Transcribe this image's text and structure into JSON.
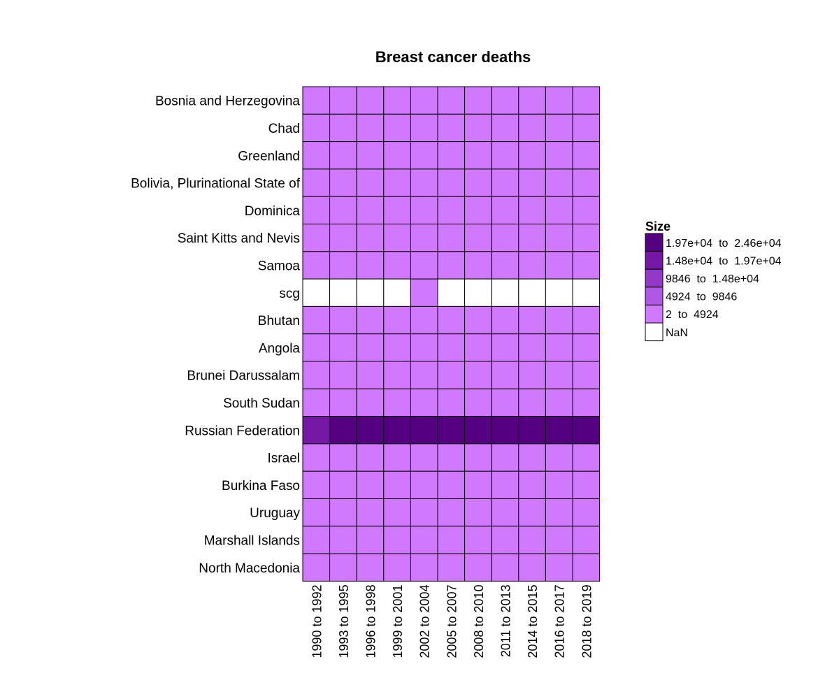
{
  "chart_data": {
    "type": "heatmap",
    "title": "Breast cancer deaths",
    "rows": [
      "Bosnia and Herzegovina",
      "Chad",
      "Greenland",
      "Bolivia, Plurinational State of",
      "Dominica",
      "Saint Kitts and Nevis",
      "Samoa",
      "scg",
      "Bhutan",
      "Angola",
      "Brunei Darussalam",
      "South Sudan",
      "Russian Federation",
      "Israel",
      "Burkina Faso",
      "Uruguay",
      "Marshall Islands",
      "North Macedonia"
    ],
    "columns": [
      "1990 to 1992",
      "1993 to 1995",
      "1996 to 1998",
      "1999 to 2001",
      "2002 to 2004",
      "2005 to 2007",
      "2008 to 2010",
      "2011 to 2013",
      "2014 to 2015",
      "2016 to 2017",
      "2018 to 2019"
    ],
    "bins": [
      "2 to 4924",
      "2 to 4924",
      "2 to 4924",
      "2 to 4924",
      "2 to 4924",
      "2 to 4924",
      "2 to 4924",
      "NaN",
      "2 to 4924",
      "2 to 4924",
      "2 to 4924",
      "2 to 4924",
      "1.48e+04 to 1.97e+04",
      "2 to 4924",
      "2 to 4924",
      "2 to 4924",
      "2 to 4924",
      "2 to 4924"
    ],
    "cell_bins": [
      [
        0,
        0,
        0,
        0,
        0,
        0,
        0,
        0,
        0,
        0,
        0
      ],
      [
        0,
        0,
        0,
        0,
        0,
        0,
        0,
        0,
        0,
        0,
        0
      ],
      [
        0,
        0,
        0,
        0,
        0,
        0,
        0,
        0,
        0,
        0,
        0
      ],
      [
        0,
        0,
        0,
        0,
        0,
        0,
        0,
        0,
        0,
        0,
        0
      ],
      [
        0,
        0,
        0,
        0,
        0,
        0,
        0,
        0,
        0,
        0,
        0
      ],
      [
        0,
        0,
        0,
        0,
        0,
        0,
        0,
        0,
        0,
        0,
        0
      ],
      [
        0,
        0,
        0,
        0,
        0,
        0,
        0,
        0,
        0,
        0,
        0
      ],
      [
        -1,
        -1,
        -1,
        -1,
        0,
        -1,
        -1,
        -1,
        -1,
        -1,
        -1
      ],
      [
        0,
        0,
        0,
        0,
        0,
        0,
        0,
        0,
        0,
        0,
        0
      ],
      [
        0,
        0,
        0,
        0,
        0,
        0,
        0,
        0,
        0,
        0,
        0
      ],
      [
        0,
        0,
        0,
        0,
        0,
        0,
        0,
        0,
        0,
        0,
        0
      ],
      [
        0,
        0,
        0,
        0,
        0,
        0,
        0,
        0,
        0,
        0,
        0
      ],
      [
        3,
        4,
        4,
        4,
        4,
        4,
        4,
        4,
        4,
        4,
        4
      ],
      [
        0,
        0,
        0,
        0,
        0,
        0,
        0,
        0,
        0,
        0,
        0
      ],
      [
        0,
        0,
        0,
        0,
        0,
        0,
        0,
        0,
        0,
        0,
        0
      ],
      [
        0,
        0,
        0,
        0,
        0,
        0,
        0,
        0,
        0,
        0,
        0
      ],
      [
        0,
        0,
        0,
        0,
        0,
        0,
        0,
        0,
        0,
        0,
        0
      ],
      [
        0,
        0,
        0,
        0,
        0,
        0,
        0,
        0,
        0,
        0,
        0
      ]
    ],
    "legend": {
      "title": "Size",
      "placement": "right",
      "items": [
        {
          "label": "1.97e+04  to  2.46e+04",
          "color": "#540080",
          "bin": 4
        },
        {
          "label": "1.48e+04  to  1.97e+04",
          "color": "#7518a6",
          "bin": 3
        },
        {
          "label": "9846  to  1.48e+04",
          "color": "#9438c8",
          "bin": 2
        },
        {
          "label": "4924  to  9846",
          "color": "#b157e6",
          "bin": 1
        },
        {
          "label": "2  to  4924",
          "color": "#d079ff",
          "bin": 0
        },
        {
          "label": "NaN",
          "color": "#ffffff",
          "bin": -1
        }
      ]
    }
  }
}
